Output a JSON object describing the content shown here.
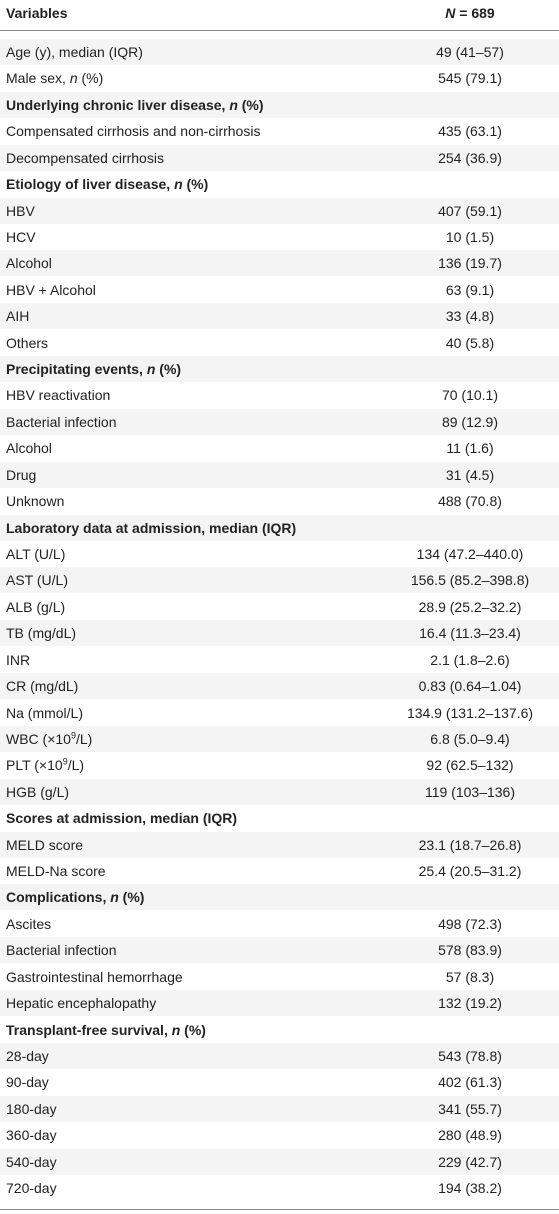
{
  "table": {
    "header": [
      [
        "Variables"
      ],
      [
        {
          "text": "N",
          "style": "italic"
        },
        " = 689"
      ]
    ],
    "rows": [
      {
        "label": [
          "Age (y), median (IQR)"
        ],
        "value": "49 (41–57)"
      },
      {
        "label": [
          "Male sex, ",
          {
            "text": "n",
            "style": "italic"
          },
          " (%)"
        ],
        "value": "545 (79.1)"
      },
      {
        "label": [
          "Underlying chronic liver disease, ",
          {
            "text": "n",
            "style": "italic"
          },
          " (%)"
        ],
        "section": true
      },
      {
        "label": [
          "Compensated cirrhosis and non-cirrhosis"
        ],
        "value": "435 (63.1)"
      },
      {
        "label": [
          "Decompensated cirrhosis"
        ],
        "value": "254 (36.9)"
      },
      {
        "label": [
          "Etiology of liver disease, ",
          {
            "text": "n",
            "style": "italic"
          },
          " (%)"
        ],
        "section": true
      },
      {
        "label": [
          "HBV"
        ],
        "value": "407 (59.1)"
      },
      {
        "label": [
          "HCV"
        ],
        "value": "10 (1.5)"
      },
      {
        "label": [
          "Alcohol"
        ],
        "value": "136 (19.7)"
      },
      {
        "label": [
          "HBV + Alcohol"
        ],
        "value": "63 (9.1)"
      },
      {
        "label": [
          "AIH"
        ],
        "value": "33 (4.8)"
      },
      {
        "label": [
          "Others"
        ],
        "value": "40 (5.8)"
      },
      {
        "label": [
          "Precipitating events, ",
          {
            "text": "n",
            "style": "italic"
          },
          " (%)"
        ],
        "section": true
      },
      {
        "label": [
          "HBV reactivation"
        ],
        "value": "70 (10.1)"
      },
      {
        "label": [
          "Bacterial infection"
        ],
        "value": "89 (12.9)"
      },
      {
        "label": [
          "Alcohol"
        ],
        "value": "11 (1.6)"
      },
      {
        "label": [
          "Drug"
        ],
        "value": "31 (4.5)"
      },
      {
        "label": [
          "Unknown"
        ],
        "value": "488 (70.8)"
      },
      {
        "label": [
          "Laboratory data at admission, median (IQR)"
        ],
        "section": true
      },
      {
        "label": [
          "ALT (U/L)"
        ],
        "value": "134 (47.2–440.0)"
      },
      {
        "label": [
          "AST (U/L)"
        ],
        "value": "156.5 (85.2–398.8)"
      },
      {
        "label": [
          "ALB (g/L)"
        ],
        "value": "28.9 (25.2–32.2)"
      },
      {
        "label": [
          "TB (mg/dL)"
        ],
        "value": "16.4 (11.3–23.4)"
      },
      {
        "label": [
          "INR"
        ],
        "value": "2.1 (1.8–2.6)"
      },
      {
        "label": [
          "CR (mg/dL)"
        ],
        "value": "0.83 (0.64–1.04)"
      },
      {
        "label": [
          "Na (mmol/L)"
        ],
        "value": "134.9 (131.2–137.6)"
      },
      {
        "label": [
          "WBC (×10",
          {
            "text": "9",
            "style": "sup"
          },
          "/L)"
        ],
        "value": "6.8 (5.0–9.4)"
      },
      {
        "label": [
          "PLT (×10",
          {
            "text": "9",
            "style": "sup"
          },
          "/L)"
        ],
        "value": "92 (62.5–132)"
      },
      {
        "label": [
          "HGB (g/L)"
        ],
        "value": "119 (103–136)"
      },
      {
        "label": [
          "Scores at admission, median (IQR)"
        ],
        "section": true
      },
      {
        "label": [
          "MELD score"
        ],
        "value": "23.1 (18.7–26.8)"
      },
      {
        "label": [
          "MELD-Na score"
        ],
        "value": "25.4 (20.5–31.2)"
      },
      {
        "label": [
          "Complications, ",
          {
            "text": "n",
            "style": "italic"
          },
          " (%)"
        ],
        "section": true
      },
      {
        "label": [
          "Ascites"
        ],
        "value": "498 (72.3)"
      },
      {
        "label": [
          "Bacterial infection"
        ],
        "value": "578 (83.9)"
      },
      {
        "label": [
          "Gastrointestinal hemorrhage"
        ],
        "value": "57 (8.3)"
      },
      {
        "label": [
          "Hepatic encephalopathy"
        ],
        "value": "132 (19.2)"
      },
      {
        "label": [
          "Transplant-free survival, ",
          {
            "text": "n",
            "style": "italic"
          },
          " (%)"
        ],
        "section": true
      },
      {
        "label": [
          "28-day"
        ],
        "value": "543 (78.8)"
      },
      {
        "label": [
          "90-day"
        ],
        "value": "402 (61.3)"
      },
      {
        "label": [
          "180-day"
        ],
        "value": "341 (55.7)"
      },
      {
        "label": [
          "360-day"
        ],
        "value": "280 (48.9)"
      },
      {
        "label": [
          "540-day"
        ],
        "value": "229 (42.7)"
      },
      {
        "label": [
          "720-day"
        ],
        "value": "194 (38.2)"
      }
    ]
  }
}
